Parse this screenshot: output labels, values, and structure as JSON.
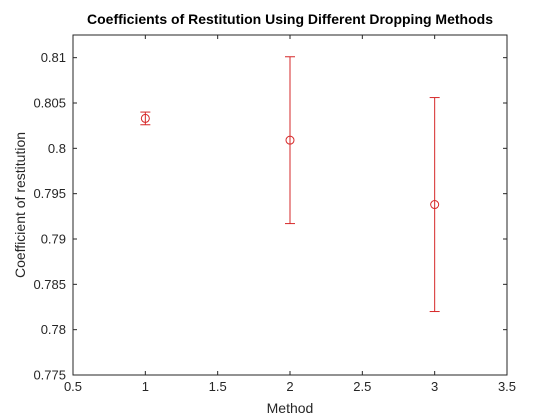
{
  "chart_data": {
    "type": "scatter",
    "title": "Coefficients of Restitution Using Different Dropping Methods",
    "xlabel": "Method",
    "ylabel": "Coefficient of restitution",
    "xlim": [
      0.5,
      3.5
    ],
    "ylim": [
      0.775,
      0.8125
    ],
    "xticks": [
      "0.5",
      "1",
      "1.5",
      "2",
      "2.5",
      "3",
      "3.5"
    ],
    "xtick_values": [
      0.5,
      1,
      1.5,
      2,
      2.5,
      3,
      3.5
    ],
    "yticks": [
      "0.775",
      "0.78",
      "0.785",
      "0.79",
      "0.795",
      "0.8",
      "0.805",
      "0.81"
    ],
    "ytick_values": [
      0.775,
      0.78,
      0.785,
      0.79,
      0.795,
      0.8,
      0.805,
      0.81
    ],
    "grid": false,
    "marker": "circle-open",
    "color": "#d62728",
    "points": [
      {
        "x": 1,
        "y": 0.8033,
        "err_low": 0.8026,
        "err_high": 0.804
      },
      {
        "x": 2,
        "y": 0.8009,
        "err_low": 0.7917,
        "err_high": 0.8101
      },
      {
        "x": 3,
        "y": 0.7938,
        "err_low": 0.782,
        "err_high": 0.8056
      }
    ]
  }
}
